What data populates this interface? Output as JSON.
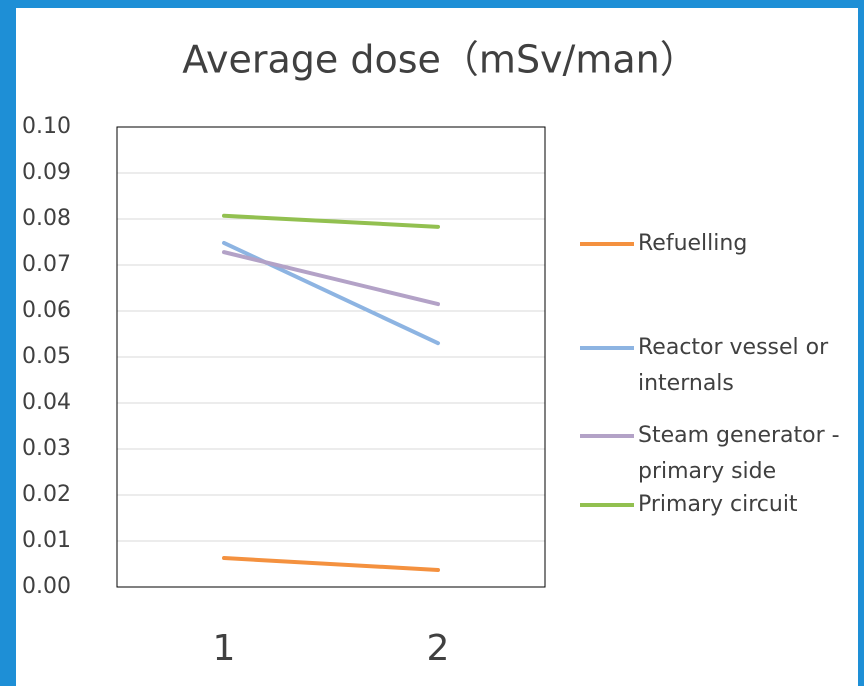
{
  "chart_data": {
    "type": "line",
    "title": "Average dose（mSv/man）",
    "categories": [
      "1",
      "2"
    ],
    "series": [
      {
        "name": "Refuelling",
        "color": "#f4913f",
        "values": [
          0.0063,
          0.0037
        ]
      },
      {
        "name": "Reactor vessel or internals",
        "color": "#8db4e2",
        "values": [
          0.0748,
          0.053
        ]
      },
      {
        "name": "Steam generator - primary side",
        "color": "#b3a2c7",
        "values": [
          0.0728,
          0.0615
        ]
      },
      {
        "name": "Primary circuit",
        "color": "#92c050",
        "values": [
          0.0807,
          0.0783
        ]
      }
    ],
    "ylim": [
      0,
      0.1
    ],
    "yticks": [
      {
        "value": 0,
        "label": "0.00"
      },
      {
        "value": 0.01,
        "label": "0.01"
      },
      {
        "value": 0.02,
        "label": "0.02"
      },
      {
        "value": 0.03,
        "label": "0.03"
      },
      {
        "value": 0.04,
        "label": "0.04"
      },
      {
        "value": 0.05,
        "label": "0.05"
      },
      {
        "value": 0.06,
        "label": "0.06"
      },
      {
        "value": 0.07,
        "label": "0.07"
      },
      {
        "value": 0.08,
        "label": "0.08"
      },
      {
        "value": 0.09,
        "label": "0.09"
      },
      {
        "value": 0.1,
        "label": "0.10"
      }
    ],
    "grid": true,
    "legend": "right"
  }
}
